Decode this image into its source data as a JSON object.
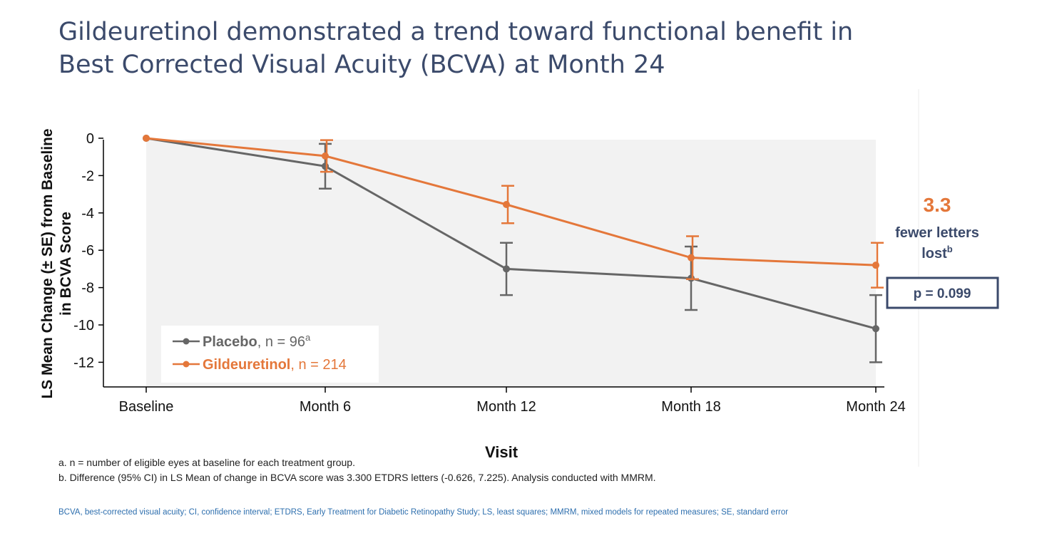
{
  "slide": {
    "title_line1": "Gildeuretinol demonstrated a trend toward functional benefit in",
    "title_line2": "Best Corrected Visual Acuity (BCVA) at Month 24",
    "footnote_a": "a.   n = number of eligible eyes at baseline for each treatment group.",
    "footnote_b": "b.   Difference (95% CI) in LS Mean of change in BCVA score was 3.300 ETDRS letters (-0.626, 7.225). Analysis conducted with MMRM.",
    "abbreviations": "BCVA, best-corrected visual acuity; CI, confidence interval; ETDRS, Early Treatment for Diabetic Retinopathy Study; LS, least squares; MMRM, mixed models for repeated measures; SE, standard error"
  },
  "chart_data": {
    "type": "line",
    "categories": [
      "Baseline",
      "Month 6",
      "Month 12",
      "Month 18",
      "Month 24"
    ],
    "xlabel": "Visit",
    "ylabel_line1": "LS Mean Change (± SE) from Baseline",
    "ylabel_line2": "in BCVA Score",
    "ylim": [
      -13,
      0
    ],
    "yticks": [
      0,
      -2,
      -4,
      -6,
      -8,
      -10,
      -12
    ],
    "ytick_labels": [
      "0",
      "-2",
      "-4",
      "-6",
      "-8",
      "-10",
      "-12"
    ],
    "series": [
      {
        "name": "Placebo",
        "legend_suffix": ", n = 96",
        "legend_sup": "a",
        "color": "#666666",
        "values": [
          0,
          -1.5,
          -7.0,
          -7.5,
          -10.2
        ],
        "se": [
          0,
          1.2,
          1.4,
          1.7,
          1.8
        ]
      },
      {
        "name": "Gildeuretinol",
        "legend_suffix": ", n = 214",
        "legend_sup": "",
        "color": "#e4773a",
        "values": [
          0,
          -0.95,
          -3.55,
          -6.4,
          -6.8
        ],
        "se": [
          0,
          0.85,
          1.0,
          1.15,
          1.2
        ]
      }
    ],
    "annotation": {
      "value": "3.3",
      "line1": "fewer letters",
      "line2": "lost",
      "sup": "b",
      "pvalue": "p = 0.099",
      "value_color": "#e4773a",
      "text_color": "#3b4a6b"
    },
    "legend_position": "bottom-left",
    "plot_background": "#f2f2f2"
  }
}
